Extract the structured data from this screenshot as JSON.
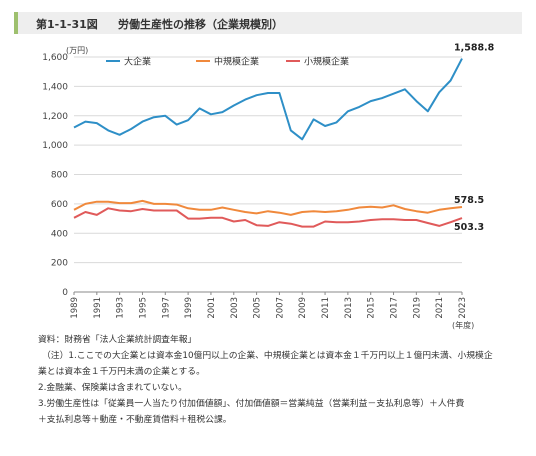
{
  "figure": {
    "number": "第1-1-31図",
    "title": "労働生産性の推移（企業規模別）"
  },
  "chart_data": {
    "type": "line",
    "yunit": "(万円)",
    "xunit": "(年度)",
    "ylim": [
      0,
      1600
    ],
    "yticks": [
      0,
      200,
      400,
      600,
      800,
      1000,
      1200,
      1400,
      1600
    ],
    "ytick_labels": [
      "0",
      "200",
      "400",
      "600",
      "800",
      "1,000",
      "1,200",
      "1,400",
      "1,600"
    ],
    "x": [
      1989,
      1990,
      1991,
      1992,
      1993,
      1994,
      1995,
      1996,
      1997,
      1998,
      1999,
      2000,
      2001,
      2002,
      2003,
      2004,
      2005,
      2006,
      2007,
      2008,
      2009,
      2010,
      2011,
      2012,
      2013,
      2014,
      2015,
      2016,
      2017,
      2018,
      2019,
      2020,
      2021,
      2022,
      2023
    ],
    "xtick_labels": [
      "1989",
      "1991",
      "1993",
      "1995",
      "1997",
      "1999",
      "2001",
      "2003",
      "2005",
      "2007",
      "2009",
      "2011",
      "2013",
      "2015",
      "2017",
      "2019",
      "2021",
      "2023"
    ],
    "legend_position": "top-left",
    "grid": "horizontal",
    "series": [
      {
        "name": "大企業",
        "color": "#2e8fc7",
        "end_label": "1,588.8",
        "values": [
          1120,
          1160,
          1150,
          1100,
          1070,
          1110,
          1160,
          1190,
          1200,
          1140,
          1170,
          1250,
          1210,
          1225,
          1270,
          1310,
          1340,
          1355,
          1355,
          1100,
          1040,
          1175,
          1130,
          1155,
          1230,
          1260,
          1300,
          1320,
          1350,
          1380,
          1300,
          1230,
          1360,
          1440,
          1588.8
        ]
      },
      {
        "name": "中規模企業",
        "color": "#f0893c",
        "end_label": "578.5",
        "values": [
          560,
          600,
          615,
          615,
          605,
          605,
          620,
          600,
          600,
          595,
          570,
          560,
          560,
          575,
          560,
          545,
          535,
          550,
          540,
          525,
          545,
          550,
          545,
          550,
          560,
          575,
          580,
          575,
          590,
          565,
          550,
          540,
          560,
          570,
          578.5
        ]
      },
      {
        "name": "小規模企業",
        "color": "#e05a5a",
        "end_label": "503.3",
        "values": [
          505,
          545,
          525,
          570,
          555,
          550,
          565,
          555,
          555,
          555,
          500,
          500,
          505,
          505,
          480,
          490,
          455,
          450,
          475,
          465,
          445,
          445,
          480,
          475,
          475,
          480,
          490,
          495,
          495,
          490,
          490,
          470,
          450,
          475,
          503.3
        ]
      }
    ]
  },
  "notes": [
    "資料：財務省「法人企業統計調査年報」",
    "（注）1.ここでの大企業とは資本金10億円以上の企業、中規模企業とは資本金１千万円以上１億円未満、小規模企",
    "業とは資本金１千万円未満の企業とする。",
    "2.金融業、保険業は含まれていない。",
    "3.労働生産性は「従業員一人当たり付加価値額」、付加価値額＝営業純益（営業利益－支払利息等）＋人件費",
    "＋支払利息等＋動産・不動産賃借料＋租税公課。"
  ]
}
